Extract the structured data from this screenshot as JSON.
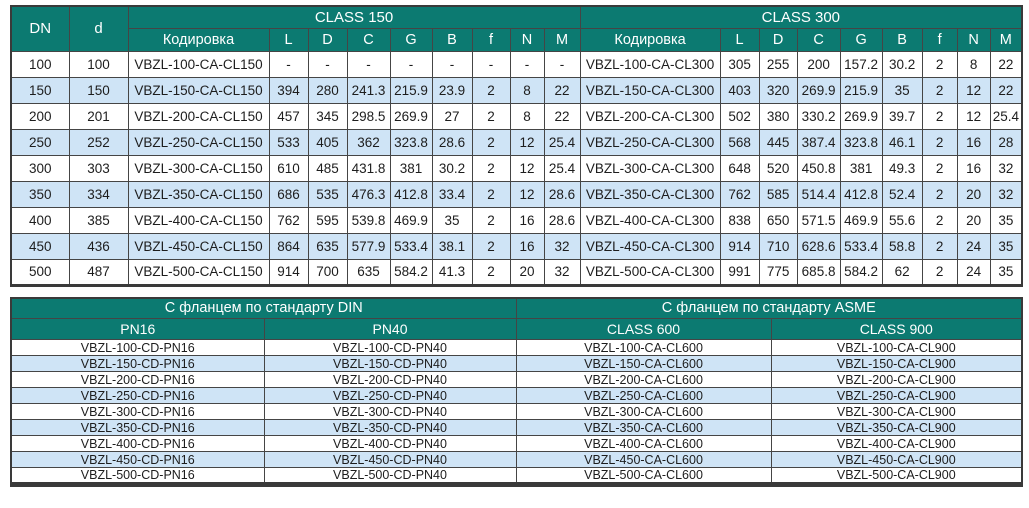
{
  "colors": {
    "header_teal": "#0c7a71",
    "row_alt_blue": "#cfe4f6",
    "row_white": "#ffffff",
    "border": "#454545",
    "outer_border": "#3a3a3a",
    "header_text": "#ffffff",
    "data_text": "#1d1d1d"
  },
  "top_table": {
    "dn_label": "DN",
    "d_label": "d",
    "class150_label": "CLASS 150",
    "class300_label": "CLASS 300",
    "code_label": "Кодировка",
    "dim_cols": [
      "L",
      "D",
      "C",
      "G",
      "B",
      "f",
      "N",
      "M"
    ],
    "rows": [
      {
        "dn": "100",
        "d": "100",
        "code150": "VBZL-100-CA-CL150",
        "vals150": [
          "-",
          "-",
          "-",
          "-",
          "-",
          "-",
          "-",
          "-"
        ],
        "code300": "VBZL-100-CA-CL300",
        "vals300": [
          "305",
          "255",
          "200",
          "157.2",
          "30.2",
          "2",
          "8",
          "22"
        ]
      },
      {
        "dn": "150",
        "d": "150",
        "code150": "VBZL-150-CA-CL150",
        "vals150": [
          "394",
          "280",
          "241.3",
          "215.9",
          "23.9",
          "2",
          "8",
          "22"
        ],
        "code300": "VBZL-150-CA-CL300",
        "vals300": [
          "403",
          "320",
          "269.9",
          "215.9",
          "35",
          "2",
          "12",
          "22"
        ]
      },
      {
        "dn": "200",
        "d": "201",
        "code150": "VBZL-200-CA-CL150",
        "vals150": [
          "457",
          "345",
          "298.5",
          "269.9",
          "27",
          "2",
          "8",
          "22"
        ],
        "code300": "VBZL-200-CA-CL300",
        "vals300": [
          "502",
          "380",
          "330.2",
          "269.9",
          "39.7",
          "2",
          "12",
          "25.4"
        ]
      },
      {
        "dn": "250",
        "d": "252",
        "code150": "VBZL-250-CA-CL150",
        "vals150": [
          "533",
          "405",
          "362",
          "323.8",
          "28.6",
          "2",
          "12",
          "25.4"
        ],
        "code300": "VBZL-250-CA-CL300",
        "vals300": [
          "568",
          "445",
          "387.4",
          "323.8",
          "46.1",
          "2",
          "16",
          "28"
        ]
      },
      {
        "dn": "300",
        "d": "303",
        "code150": "VBZL-300-CA-CL150",
        "vals150": [
          "610",
          "485",
          "431.8",
          "381",
          "30.2",
          "2",
          "12",
          "25.4"
        ],
        "code300": "VBZL-300-CA-CL300",
        "vals300": [
          "648",
          "520",
          "450.8",
          "381",
          "49.3",
          "2",
          "16",
          "32"
        ]
      },
      {
        "dn": "350",
        "d": "334",
        "code150": "VBZL-350-CA-CL150",
        "vals150": [
          "686",
          "535",
          "476.3",
          "412.8",
          "33.4",
          "2",
          "12",
          "28.6"
        ],
        "code300": "VBZL-350-CA-CL300",
        "vals300": [
          "762",
          "585",
          "514.4",
          "412.8",
          "52.4",
          "2",
          "20",
          "32"
        ]
      },
      {
        "dn": "400",
        "d": "385",
        "code150": "VBZL-400-CA-CL150",
        "vals150": [
          "762",
          "595",
          "539.8",
          "469.9",
          "35",
          "2",
          "16",
          "28.6"
        ],
        "code300": "VBZL-400-CA-CL300",
        "vals300": [
          "838",
          "650",
          "571.5",
          "469.9",
          "55.6",
          "2",
          "20",
          "35"
        ]
      },
      {
        "dn": "450",
        "d": "436",
        "code150": "VBZL-450-CA-CL150",
        "vals150": [
          "864",
          "635",
          "577.9",
          "533.4",
          "38.1",
          "2",
          "16",
          "32"
        ],
        "code300": "VBZL-450-CA-CL300",
        "vals300": [
          "914",
          "710",
          "628.6",
          "533.4",
          "58.8",
          "2",
          "24",
          "35"
        ]
      },
      {
        "dn": "500",
        "d": "487",
        "code150": "VBZL-500-CA-CL150",
        "vals150": [
          "914",
          "700",
          "635",
          "584.2",
          "41.3",
          "2",
          "20",
          "32"
        ],
        "code300": "VBZL-500-CA-CL300",
        "vals300": [
          "991",
          "775",
          "685.8",
          "584.2",
          "62",
          "2",
          "24",
          "35"
        ]
      }
    ]
  },
  "bottom_table": {
    "din_group_label": "С фланцем по стандарту DIN",
    "asme_group_label": "С фланцем по стандарту ASME",
    "col_headers": [
      "PN16",
      "PN40",
      "CLASS 600",
      "CLASS 900"
    ],
    "rows": [
      [
        "VBZL-100-CD-PN16",
        "VBZL-100-CD-PN40",
        "VBZL-100-CA-CL600",
        "VBZL-100-CA-CL900"
      ],
      [
        "VBZL-150-CD-PN16",
        "VBZL-150-CD-PN40",
        "VBZL-150-CA-CL600",
        "VBZL-150-CA-CL900"
      ],
      [
        "VBZL-200-CD-PN16",
        "VBZL-200-CD-PN40",
        "VBZL-200-CA-CL600",
        "VBZL-200-CA-CL900"
      ],
      [
        "VBZL-250-CD-PN16",
        "VBZL-250-CD-PN40",
        "VBZL-250-CA-CL600",
        "VBZL-250-CA-CL900"
      ],
      [
        "VBZL-300-CD-PN16",
        "VBZL-300-CD-PN40",
        "VBZL-300-CA-CL600",
        "VBZL-300-CA-CL900"
      ],
      [
        "VBZL-350-CD-PN16",
        "VBZL-350-CD-PN40",
        "VBZL-350-CA-CL600",
        "VBZL-350-CA-CL900"
      ],
      [
        "VBZL-400-CD-PN16",
        "VBZL-400-CD-PN40",
        "VBZL-400-CA-CL600",
        "VBZL-400-CA-CL900"
      ],
      [
        "VBZL-450-CD-PN16",
        "VBZL-450-CD-PN40",
        "VBZL-450-CA-CL600",
        "VBZL-450-CA-CL900"
      ],
      [
        "VBZL-500-CD-PN16",
        "VBZL-500-CD-PN40",
        "VBZL-500-CA-CL600",
        "VBZL-500-CA-CL900"
      ]
    ]
  }
}
